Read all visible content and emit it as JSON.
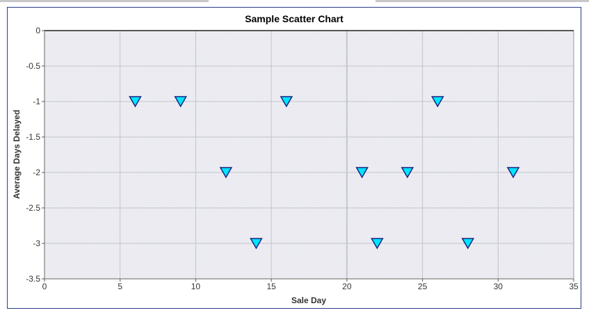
{
  "chart_data": {
    "type": "scatter",
    "title": "Sample Scatter Chart",
    "xlabel": "Sale Day",
    "ylabel": "Average Days Delayed",
    "xlim": [
      0,
      35
    ],
    "ylim": [
      -3.5,
      0
    ],
    "x_ticks": [
      0,
      5,
      10,
      15,
      20,
      25,
      30,
      35
    ],
    "y_ticks": [
      0,
      -0.5,
      -1,
      -1.5,
      -2,
      -2.5,
      -3,
      -3.5
    ],
    "grid": true,
    "legend": "none",
    "marker": "triangle-down",
    "colors": {
      "marker_fill": "#00e5ff",
      "marker_stroke": "#1a237e",
      "plot_background": "#ececf2",
      "grid": "#c4c4cc",
      "frame": "#2a3a8a"
    },
    "points": [
      {
        "x": 6,
        "y": -1
      },
      {
        "x": 9,
        "y": -1
      },
      {
        "x": 12,
        "y": -2
      },
      {
        "x": 14,
        "y": -3
      },
      {
        "x": 16,
        "y": -1
      },
      {
        "x": 21,
        "y": -2
      },
      {
        "x": 22,
        "y": -3
      },
      {
        "x": 24,
        "y": -2
      },
      {
        "x": 26,
        "y": -1
      },
      {
        "x": 28,
        "y": -3
      },
      {
        "x": 31,
        "y": -2
      }
    ]
  }
}
